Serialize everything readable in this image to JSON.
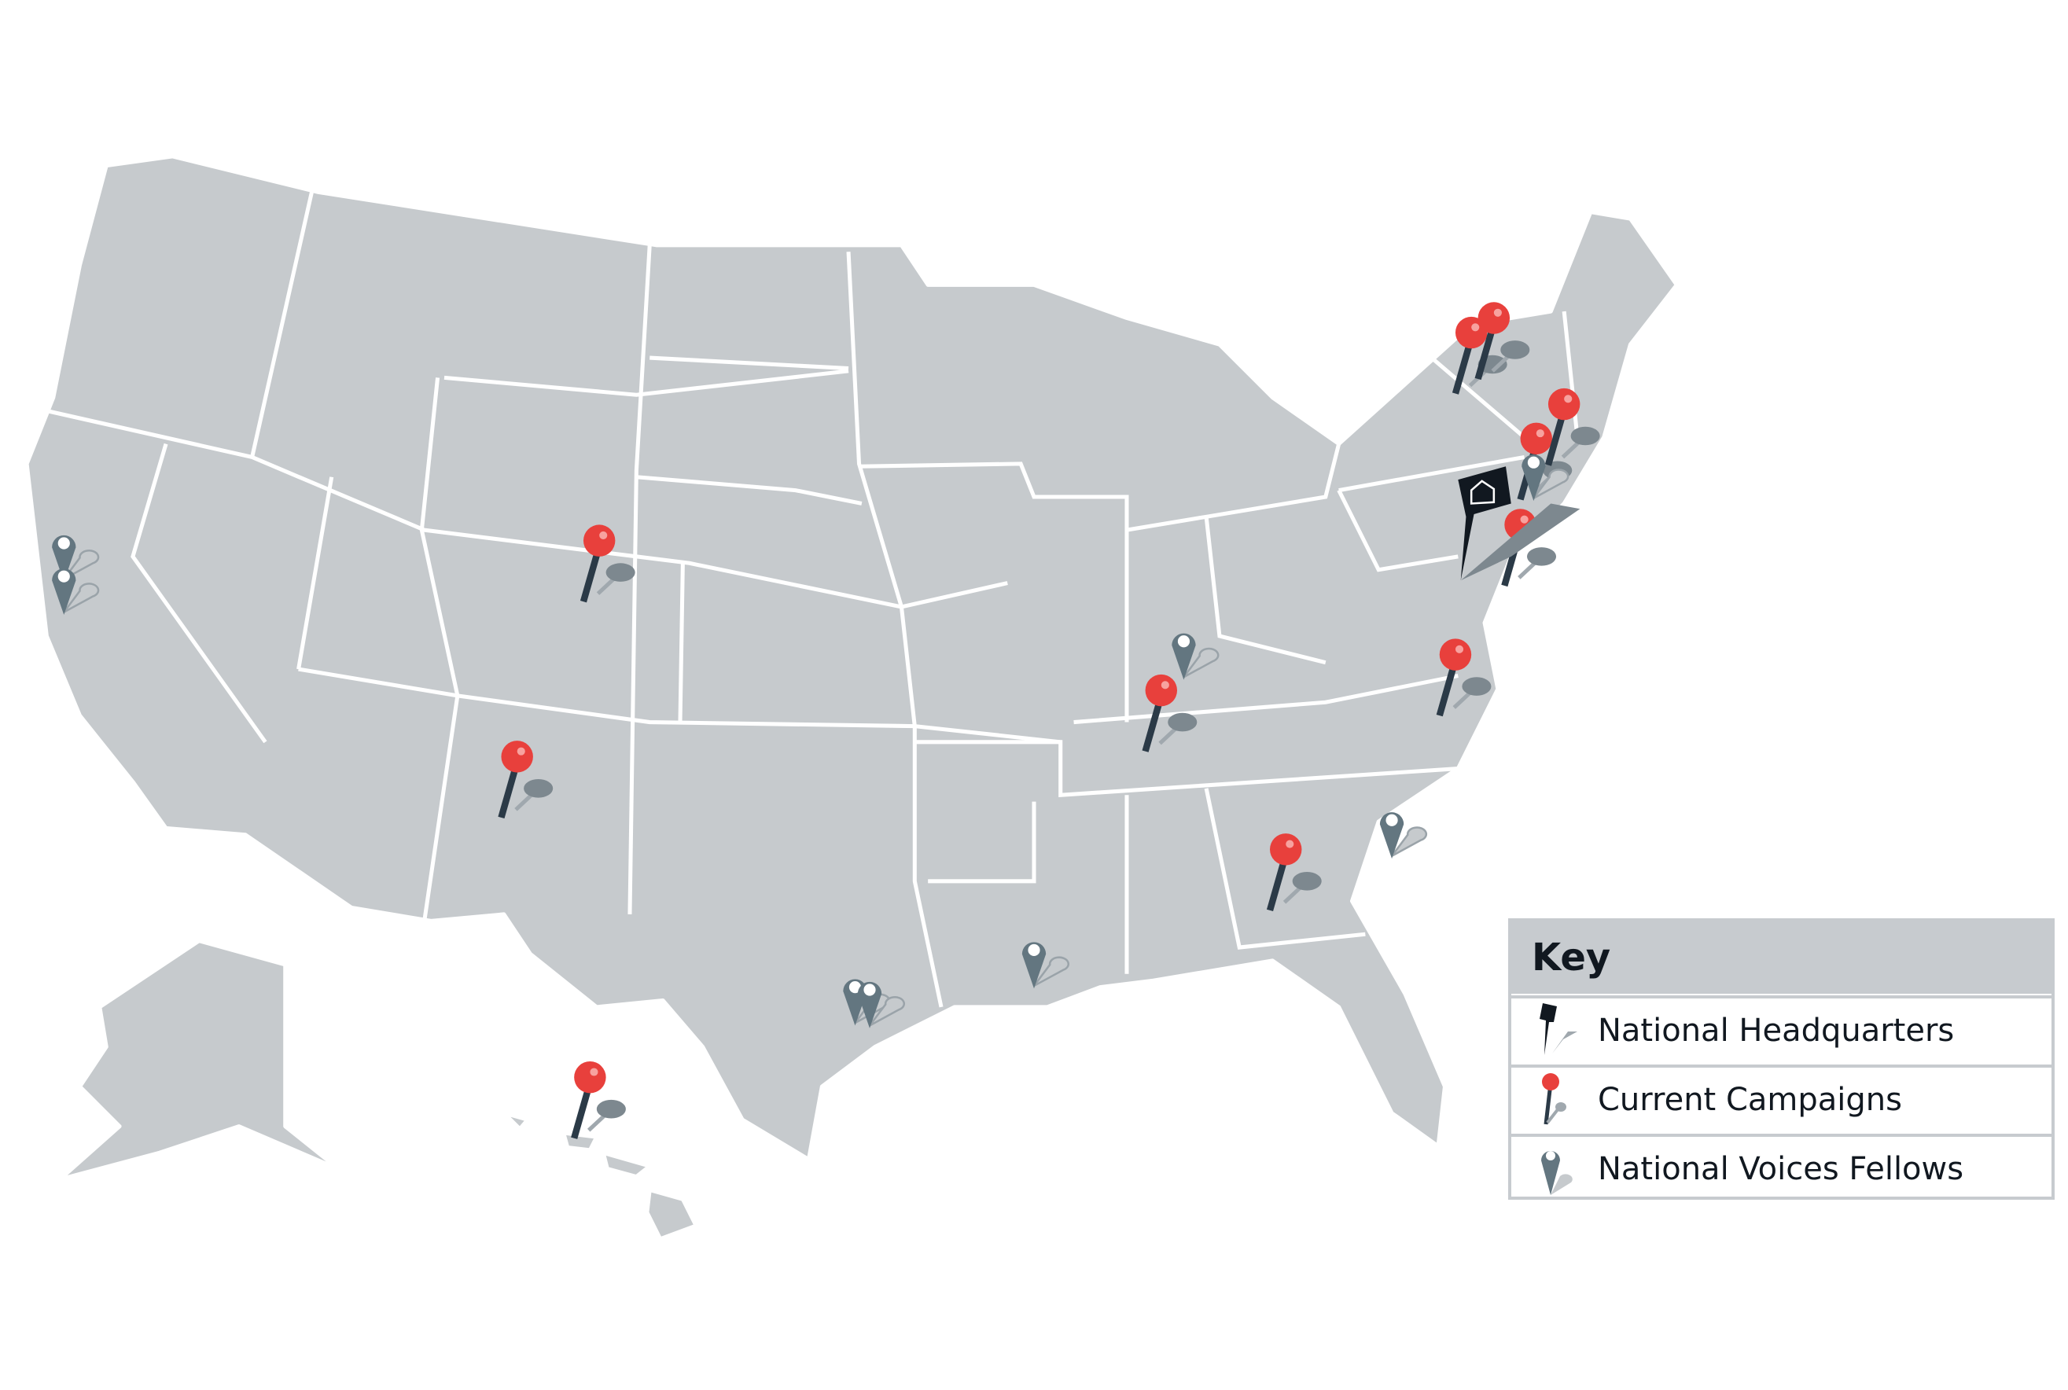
{
  "colors": {
    "land": "#c6cacd",
    "border": "#ffffff",
    "campaign": "#e8403c",
    "pin_shaft": "#2b3a47",
    "fellow": "#637680",
    "headquarters": "#111820"
  },
  "key": {
    "title": "Key",
    "items": [
      {
        "label": "National Headquarters",
        "icon": "headquarters-flag-pin-icon"
      },
      {
        "label": "Current Campaigns",
        "icon": "red-push-pin-icon"
      },
      {
        "label": "National Voices Fellows",
        "icon": "gray-map-marker-icon"
      }
    ]
  }
}
